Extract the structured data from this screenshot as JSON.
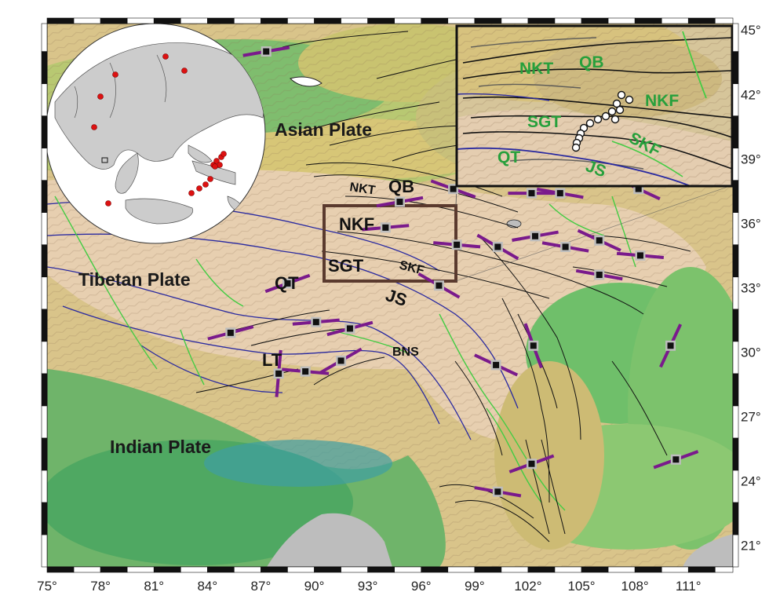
{
  "map": {
    "lon_ticks": [
      "75°",
      "78°",
      "81°",
      "84°",
      "87°",
      "90°",
      "93°",
      "96°",
      "99°",
      "102°",
      "105°",
      "108°",
      "111°"
    ],
    "lat_ticks": [
      "45°",
      "42°",
      "39°",
      "36°",
      "33°",
      "30°",
      "27°",
      "24°",
      "21°"
    ],
    "lon_range": [
      75,
      113.5
    ],
    "lat_range": [
      20,
      45.3
    ]
  },
  "labels": {
    "asian_plate": "Asian Plate",
    "tibetan_plate": "Tibetan Plate",
    "indian_plate": "Indian Plate",
    "nkt": "NKT",
    "qb": "QB",
    "nkf": "NKF",
    "sgt": "SGT",
    "skf": "SKF",
    "qt": "QT",
    "js": "JS",
    "bns": "BNS",
    "lt": "LT"
  },
  "inset": {
    "labels": {
      "nkt": "NKT",
      "qb": "QB",
      "nkf": "NKF",
      "sgt": "SGT",
      "skf": "SKF",
      "qt": "QT",
      "js": "JS"
    }
  },
  "stations": [
    {
      "lon": 87.3,
      "lat": 44.0,
      "azimuth": 80
    },
    {
      "lon": 94.8,
      "lat": 37.0,
      "azimuth": 80
    },
    {
      "lon": 94.0,
      "lat": 35.8,
      "azimuth": 85
    },
    {
      "lon": 97.8,
      "lat": 37.6,
      "azimuth": 110
    },
    {
      "lon": 102.2,
      "lat": 37.4,
      "azimuth": 90
    },
    {
      "lon": 103.8,
      "lat": 37.4,
      "azimuth": 100
    },
    {
      "lon": 108.2,
      "lat": 37.6,
      "azimuth": 115
    },
    {
      "lon": 98.0,
      "lat": 35.0,
      "azimuth": 95
    },
    {
      "lon": 100.3,
      "lat": 34.9,
      "azimuth": 120
    },
    {
      "lon": 102.4,
      "lat": 35.4,
      "azimuth": 80
    },
    {
      "lon": 104.1,
      "lat": 34.9,
      "azimuth": 100
    },
    {
      "lon": 106.0,
      "lat": 35.2,
      "azimuth": 115
    },
    {
      "lon": 108.3,
      "lat": 34.5,
      "azimuth": 95
    },
    {
      "lon": 106.0,
      "lat": 33.6,
      "azimuth": 100
    },
    {
      "lon": 88.5,
      "lat": 33.2,
      "azimuth": 70
    },
    {
      "lon": 97.0,
      "lat": 33.1,
      "azimuth": 120
    },
    {
      "lon": 85.3,
      "lat": 30.9,
      "azimuth": 75
    },
    {
      "lon": 90.1,
      "lat": 31.4,
      "azimuth": 85
    },
    {
      "lon": 92.0,
      "lat": 31.1,
      "azimuth": 75
    },
    {
      "lon": 91.5,
      "lat": 29.6,
      "azimuth": 60
    },
    {
      "lon": 88.0,
      "lat": 29.0,
      "azimuth": 5
    },
    {
      "lon": 89.5,
      "lat": 29.1,
      "azimuth": 95
    },
    {
      "lon": 100.2,
      "lat": 29.4,
      "azimuth": 115
    },
    {
      "lon": 102.3,
      "lat": 30.3,
      "azimuth": 160
    },
    {
      "lon": 110.0,
      "lat": 30.3,
      "azimuth": 25
    },
    {
      "lon": 102.2,
      "lat": 24.8,
      "azimuth": 70
    },
    {
      "lon": 100.3,
      "lat": 23.5,
      "azimuth": 100
    },
    {
      "lon": 110.3,
      "lat": 25.0,
      "azimuth": 70
    }
  ],
  "colors": {
    "fault": "#111111",
    "suture": "#2a2aa0",
    "green_fault": "#44cc44",
    "split": "#7a1a8c",
    "study_box": "#5a3a2e"
  }
}
